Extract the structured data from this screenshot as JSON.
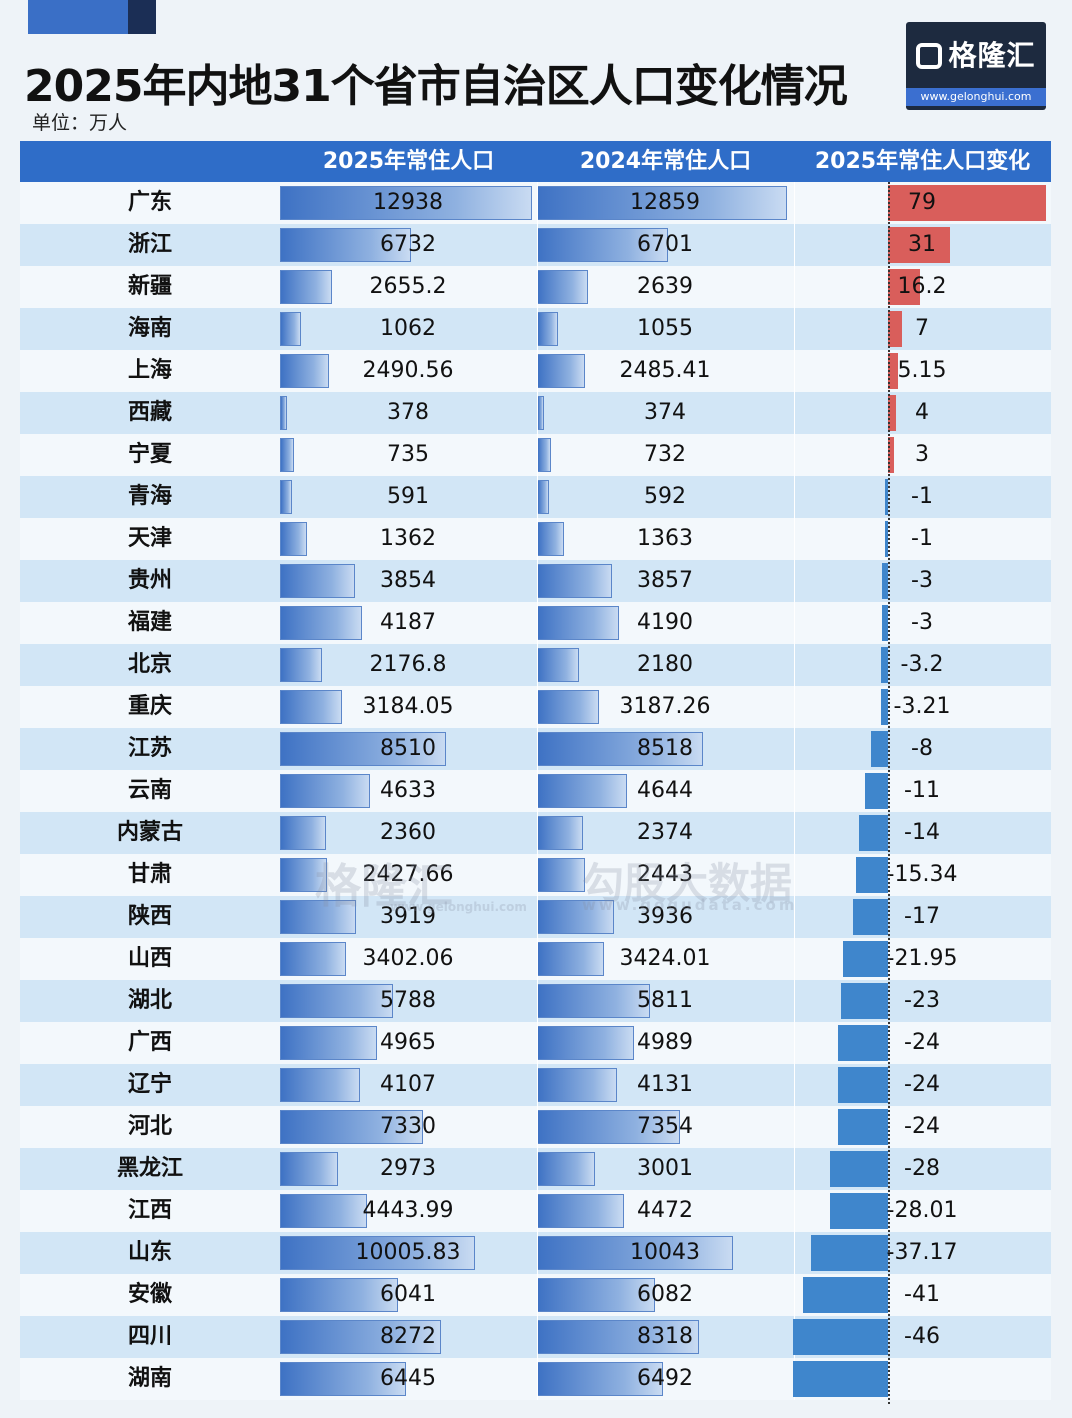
{
  "header": {
    "title": "2025年内地31个省市自治区人口变化情况",
    "unit": "单位：万人"
  },
  "logo": {
    "name": "格隆汇",
    "url": "www.gelonghui.com"
  },
  "watermark": {
    "brand1": "格隆汇",
    "brand1_url": "www.gelonghui.com",
    "brand2": "勾股大数据",
    "brand2_url": "www.gogudata.com"
  },
  "colors": {
    "header_bg": "#2f6dc8",
    "positive": "#d95e5b",
    "negative": "#3f86cc",
    "row_alt": "#d2e6f6"
  },
  "chart_data": {
    "type": "table",
    "title": "2025年内地31个省市自治区人口变化情况",
    "columns": [
      "",
      "2025年常住人口",
      "2024年常住人口",
      "2025年常住人口变化"
    ],
    "rows": [
      {
        "province": "广东",
        "pop2025": "12938",
        "pop2024": "12859",
        "change": "79"
      },
      {
        "province": "浙江",
        "pop2025": "6732",
        "pop2024": "6701",
        "change": "31"
      },
      {
        "province": "新疆",
        "pop2025": "2655.2",
        "pop2024": "2639",
        "change": "16.2"
      },
      {
        "province": "海南",
        "pop2025": "1062",
        "pop2024": "1055",
        "change": "7"
      },
      {
        "province": "上海",
        "pop2025": "2490.56",
        "pop2024": "2485.41",
        "change": "5.15"
      },
      {
        "province": "西藏",
        "pop2025": "378",
        "pop2024": "374",
        "change": "4"
      },
      {
        "province": "宁夏",
        "pop2025": "735",
        "pop2024": "732",
        "change": "3"
      },
      {
        "province": "青海",
        "pop2025": "591",
        "pop2024": "592",
        "change": "-1"
      },
      {
        "province": "天津",
        "pop2025": "1362",
        "pop2024": "1363",
        "change": "-1"
      },
      {
        "province": "贵州",
        "pop2025": "3854",
        "pop2024": "3857",
        "change": "-3"
      },
      {
        "province": "福建",
        "pop2025": "4187",
        "pop2024": "4190",
        "change": "-3"
      },
      {
        "province": "北京",
        "pop2025": "2176.8",
        "pop2024": "2180",
        "change": "-3.2"
      },
      {
        "province": "重庆",
        "pop2025": "3184.05",
        "pop2024": "3187.26",
        "change": "-3.21"
      },
      {
        "province": "江苏",
        "pop2025": "8510",
        "pop2024": "8518",
        "change": "-8"
      },
      {
        "province": "云南",
        "pop2025": "4633",
        "pop2024": "4644",
        "change": "-11"
      },
      {
        "province": "内蒙古",
        "pop2025": "2360",
        "pop2024": "2374",
        "change": "-14"
      },
      {
        "province": "甘肃",
        "pop2025": "2427.66",
        "pop2024": "2443",
        "change": "-15.34"
      },
      {
        "province": "陕西",
        "pop2025": "3919",
        "pop2024": "3936",
        "change": "-17"
      },
      {
        "province": "山西",
        "pop2025": "3402.06",
        "pop2024": "3424.01",
        "change": "-21.95"
      },
      {
        "province": "湖北",
        "pop2025": "5788",
        "pop2024": "5811",
        "change": "-23"
      },
      {
        "province": "广西",
        "pop2025": "4965",
        "pop2024": "4989",
        "change": "-24"
      },
      {
        "province": "辽宁",
        "pop2025": "4107",
        "pop2024": "4131",
        "change": "-24"
      },
      {
        "province": "河北",
        "pop2025": "7330",
        "pop2024": "7354",
        "change": "-24"
      },
      {
        "province": "黑龙江",
        "pop2025": "2973",
        "pop2024": "3001",
        "change": "-28"
      },
      {
        "province": "江西",
        "pop2025": "4443.99",
        "pop2024": "4472",
        "change": "-28.01"
      },
      {
        "province": "山东",
        "pop2025": "10005.83",
        "pop2024": "10043",
        "change": "-37.17"
      },
      {
        "province": "安徽",
        "pop2025": "6041",
        "pop2024": "6082",
        "change": "-41"
      },
      {
        "province": "四川",
        "pop2025": "8272",
        "pop2024": "8318",
        "change": "-46"
      },
      {
        "province": "湖南",
        "pop2025": "6445",
        "pop2024": "6492",
        "change": ""
      }
    ]
  }
}
